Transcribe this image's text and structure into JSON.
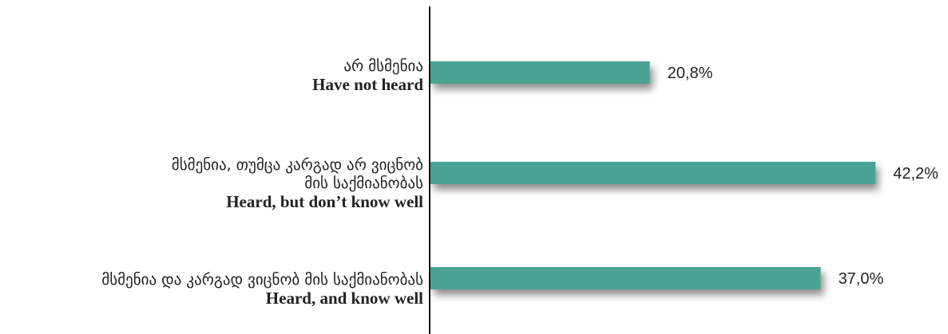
{
  "chart_data": {
    "type": "bar",
    "orientation": "horizontal",
    "categories": [
      {
        "lines_ka": [
          "არ მსმენია"
        ],
        "line_en": "Have not heard"
      },
      {
        "lines_ka": [
          "მსმენია, თუმცა კარგად არ ვიცნობ",
          "მის საქმიანობას"
        ],
        "line_en": "Heard, but don’t know well"
      },
      {
        "lines_ka": [
          "მსმენია და კარგად ვიცნობ მის საქმიანობას"
        ],
        "line_en": "Heard, and know well"
      }
    ],
    "values": [
      20.8,
      42.2,
      37.0
    ],
    "value_labels": [
      "20,8%",
      "42,2%",
      "37,0%"
    ],
    "xlim": [
      0,
      44
    ],
    "bar_color": "#4aa392",
    "grid": false,
    "legend": "none"
  }
}
